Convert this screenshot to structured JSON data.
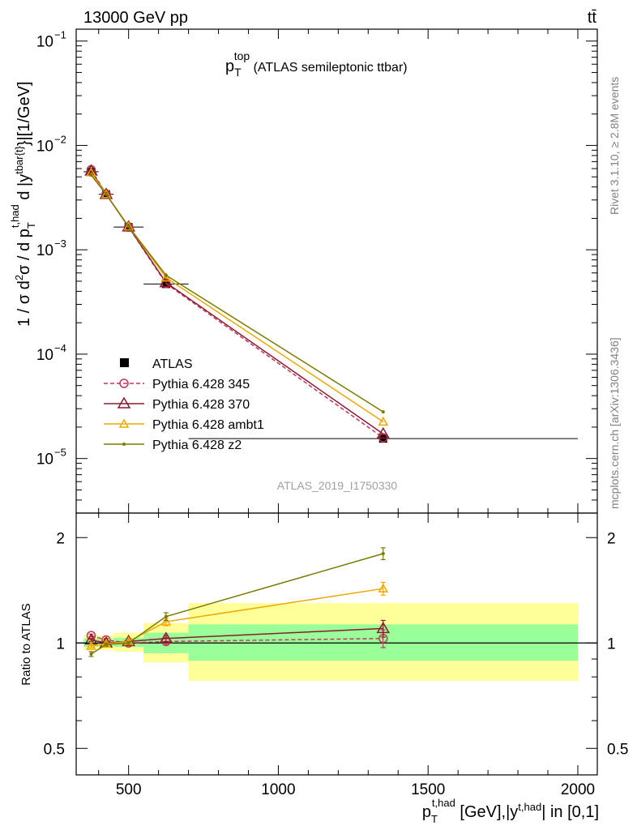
{
  "header": {
    "left": "13000 GeV pp",
    "right": "tt̄"
  },
  "side_labels": {
    "rivet": "Rivet 3.1.10, ≥ 2.8M events",
    "mcplots": "mcplots.cern.ch [arXiv:1306.3436]"
  },
  "analysis_id": "ATLAS_2019_I1750330",
  "chart_data": [
    {
      "type": "line",
      "panel": "main",
      "title": {
        "base": "p",
        "sup": "top",
        "sub": "T",
        "rest": " (ATLAS semileptonic ttbar)"
      },
      "ylabel": "1 / σ d²σ / d p_T^{t,had} d |y^{tbar{t}}|[1/GeV]",
      "yscale": "log",
      "ylim": [
        3e-06,
        0.13
      ],
      "xlim": [
        325,
        2065
      ],
      "y_ticks": [
        {
          "value": 1e-05,
          "label": "10",
          "exp": "−5"
        },
        {
          "value": 0.0001,
          "label": "10",
          "exp": "−4"
        },
        {
          "value": 0.001,
          "label": "10",
          "exp": "−3"
        },
        {
          "value": 0.01,
          "label": "10",
          "exp": "−2"
        },
        {
          "value": 0.1,
          "label": "10",
          "exp": "−1"
        }
      ],
      "legend_position": "bottom-left",
      "data": {
        "name": "ATLAS",
        "x": [
          375,
          425,
          500,
          625,
          1350
        ],
        "y": [
          0.0056,
          0.0034,
          0.00165,
          0.00047,
          1.55e-05
        ],
        "xerr": [
          25,
          25,
          50,
          75,
          650
        ]
      },
      "series": [
        {
          "name": "Pythia 6.428 345",
          "color": "#c0395a",
          "dash": true,
          "marker": "circle",
          "x": [
            375,
            425,
            500,
            625,
            1350
          ],
          "y": [
            0.00585,
            0.00342,
            0.00165,
            0.000475,
            1.58e-05
          ]
        },
        {
          "name": "Pythia 6.428 370",
          "color": "#8b1a2e",
          "dash": false,
          "marker": "triangle",
          "x": [
            375,
            425,
            500,
            625,
            1350
          ],
          "y": [
            0.0057,
            0.0034,
            0.00166,
            0.000485,
            1.72e-05
          ]
        },
        {
          "name": "Pythia 6.428 ambt1",
          "color": "#f0a800",
          "dash": false,
          "marker": "triangle-small",
          "x": [
            375,
            425,
            500,
            625,
            1350
          ],
          "y": [
            0.0055,
            0.0034,
            0.00167,
            0.00054,
            2.25e-05
          ]
        },
        {
          "name": "Pythia 6.428 z2",
          "color": "#7a7a00",
          "dash": false,
          "marker": "dot",
          "x": [
            375,
            425,
            500,
            625,
            1350
          ],
          "y": [
            0.0052,
            0.0034,
            0.00167,
            0.00057,
            2.8e-05
          ]
        }
      ]
    },
    {
      "type": "line",
      "panel": "ratio",
      "ylabel": "Ratio to ATLAS",
      "yscale": "log",
      "ylim": [
        0.42,
        2.35
      ],
      "y_ticks": [
        0.5,
        1,
        2
      ],
      "y_tick_labels": [
        "0.5",
        "1",
        "2"
      ],
      "x_ticks": [
        500,
        1000,
        1500,
        2000
      ],
      "x_tick_labels": [
        "500",
        "1000",
        "1500",
        "2000"
      ],
      "xlabel": "p_T^{t,had} [GeV],|y^{t,had}| in [0,1]",
      "bands": [
        {
          "x0": 350,
          "x1": 400,
          "inner": [
            0.975,
            1.03
          ],
          "outer": [
            0.955,
            1.055
          ]
        },
        {
          "x0": 400,
          "x1": 450,
          "inner": [
            0.98,
            1.025
          ],
          "outer": [
            0.955,
            1.05
          ]
        },
        {
          "x0": 450,
          "x1": 550,
          "inner": [
            0.975,
            1.035
          ],
          "outer": [
            0.945,
            1.07
          ]
        },
        {
          "x0": 550,
          "x1": 700,
          "inner": [
            0.935,
            1.07
          ],
          "outer": [
            0.88,
            1.14
          ]
        },
        {
          "x0": 700,
          "x1": 2000,
          "inner": [
            0.89,
            1.13
          ],
          "outer": [
            0.78,
            1.3
          ]
        }
      ],
      "series": [
        {
          "name": "Pythia 6.428 345",
          "color": "#c0395a",
          "dash": true,
          "marker": "circle",
          "x": [
            375,
            425,
            500,
            625,
            1350
          ],
          "y": [
            1.05,
            1.02,
            1.0,
            1.01,
            1.03
          ],
          "err": [
            0.01,
            0.01,
            0.01,
            0.02,
            0.06
          ]
        },
        {
          "name": "Pythia 6.428 370",
          "color": "#8b1a2e",
          "dash": false,
          "marker": "triangle",
          "x": [
            375,
            425,
            500,
            625,
            1350
          ],
          "y": [
            1.02,
            1.0,
            1.01,
            1.03,
            1.1
          ],
          "err": [
            0.01,
            0.01,
            0.01,
            0.02,
            0.06
          ]
        },
        {
          "name": "Pythia 6.428 ambt1",
          "color": "#f0a800",
          "dash": false,
          "marker": "triangle-small",
          "x": [
            375,
            425,
            500,
            625,
            1350
          ],
          "y": [
            0.98,
            0.995,
            1.01,
            1.15,
            1.43
          ],
          "err": [
            0.01,
            0.01,
            0.01,
            0.03,
            0.06
          ]
        },
        {
          "name": "Pythia 6.428 z2",
          "color": "#7a7a00",
          "dash": false,
          "marker": "dot",
          "x": [
            375,
            425,
            500,
            625,
            1350
          ],
          "y": [
            0.93,
            0.99,
            1.0,
            1.19,
            1.8
          ],
          "err": [
            0.015,
            0.01,
            0.01,
            0.03,
            0.07
          ]
        }
      ]
    }
  ]
}
